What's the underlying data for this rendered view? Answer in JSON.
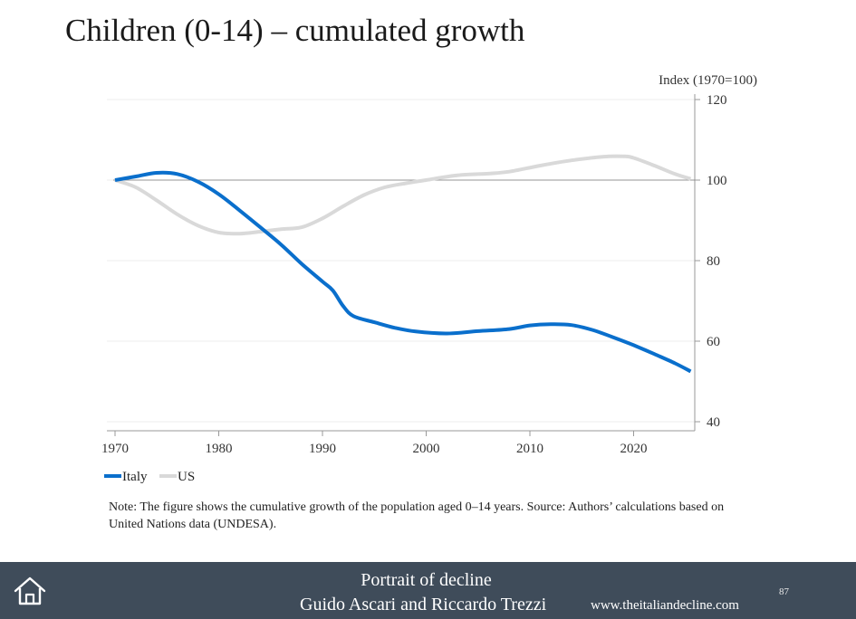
{
  "slide": {
    "title": "Children (0-14) – cumulated growth",
    "note": "Note: The figure shows the cumulative growth of the population aged 0–14 years. Source: Authors’ calculations based on United Nations data (UNDESA)."
  },
  "footer": {
    "title": "Portrait of decline",
    "authors": "Guido Ascari and Riccardo Trezzi",
    "url": "www.theitaliandecline.com",
    "page_number": "87",
    "background": "#3f4c5a"
  },
  "chart_data": {
    "type": "line",
    "title": "",
    "xlabel": "",
    "ylabel": "Index (1970=100)",
    "xlim": [
      1970,
      2026
    ],
    "ylim": [
      40,
      120
    ],
    "x_ticks": [
      1970,
      1980,
      1990,
      2000,
      2010,
      2020
    ],
    "y_ticks": [
      40,
      60,
      80,
      100,
      120
    ],
    "reference_line": 100,
    "grid": true,
    "y_axis_side": "right",
    "legend_position": "bottom-left",
    "series": [
      {
        "name": "Italy",
        "color": "#0a6fcc",
        "points": [
          [
            1970,
            100
          ],
          [
            1972,
            100.9
          ],
          [
            1974,
            101.8
          ],
          [
            1976,
            101.5
          ],
          [
            1978,
            99.6
          ],
          [
            1980,
            96.5
          ],
          [
            1982,
            92.5
          ],
          [
            1984,
            88.3
          ],
          [
            1986,
            84
          ],
          [
            1988,
            79.2
          ],
          [
            1990,
            74.8
          ],
          [
            1991,
            72.6
          ],
          [
            1992,
            68.7
          ],
          [
            1993,
            66.2
          ],
          [
            1995,
            64.7
          ],
          [
            1997,
            63.3
          ],
          [
            1999,
            62.4
          ],
          [
            2002,
            61.9
          ],
          [
            2005,
            62.5
          ],
          [
            2008,
            63
          ],
          [
            2010,
            63.9
          ],
          [
            2012,
            64.2
          ],
          [
            2014,
            64
          ],
          [
            2016,
            62.8
          ],
          [
            2018,
            61
          ],
          [
            2020,
            59
          ],
          [
            2022,
            56.8
          ],
          [
            2024,
            54.5
          ],
          [
            2025.5,
            52.5
          ]
        ]
      },
      {
        "name": "US",
        "color": "#d9d9d9",
        "points": [
          [
            1970,
            100
          ],
          [
            1972,
            98.2
          ],
          [
            1974,
            95
          ],
          [
            1976,
            91.5
          ],
          [
            1978,
            88.7
          ],
          [
            1980,
            87
          ],
          [
            1982,
            86.7
          ],
          [
            1984,
            87.2
          ],
          [
            1986,
            87.8
          ],
          [
            1988,
            88.3
          ],
          [
            1990,
            90.5
          ],
          [
            1992,
            93.5
          ],
          [
            1994,
            96.3
          ],
          [
            1996,
            98.2
          ],
          [
            1998,
            99.2
          ],
          [
            2000,
            100
          ],
          [
            2003,
            101.2
          ],
          [
            2006,
            101.6
          ],
          [
            2008,
            102.1
          ],
          [
            2011,
            103.6
          ],
          [
            2014,
            104.9
          ],
          [
            2017,
            105.8
          ],
          [
            2019,
            105.9
          ],
          [
            2020,
            105.5
          ],
          [
            2022,
            103.6
          ],
          [
            2024,
            101.5
          ],
          [
            2025.5,
            100.3
          ]
        ]
      }
    ]
  }
}
